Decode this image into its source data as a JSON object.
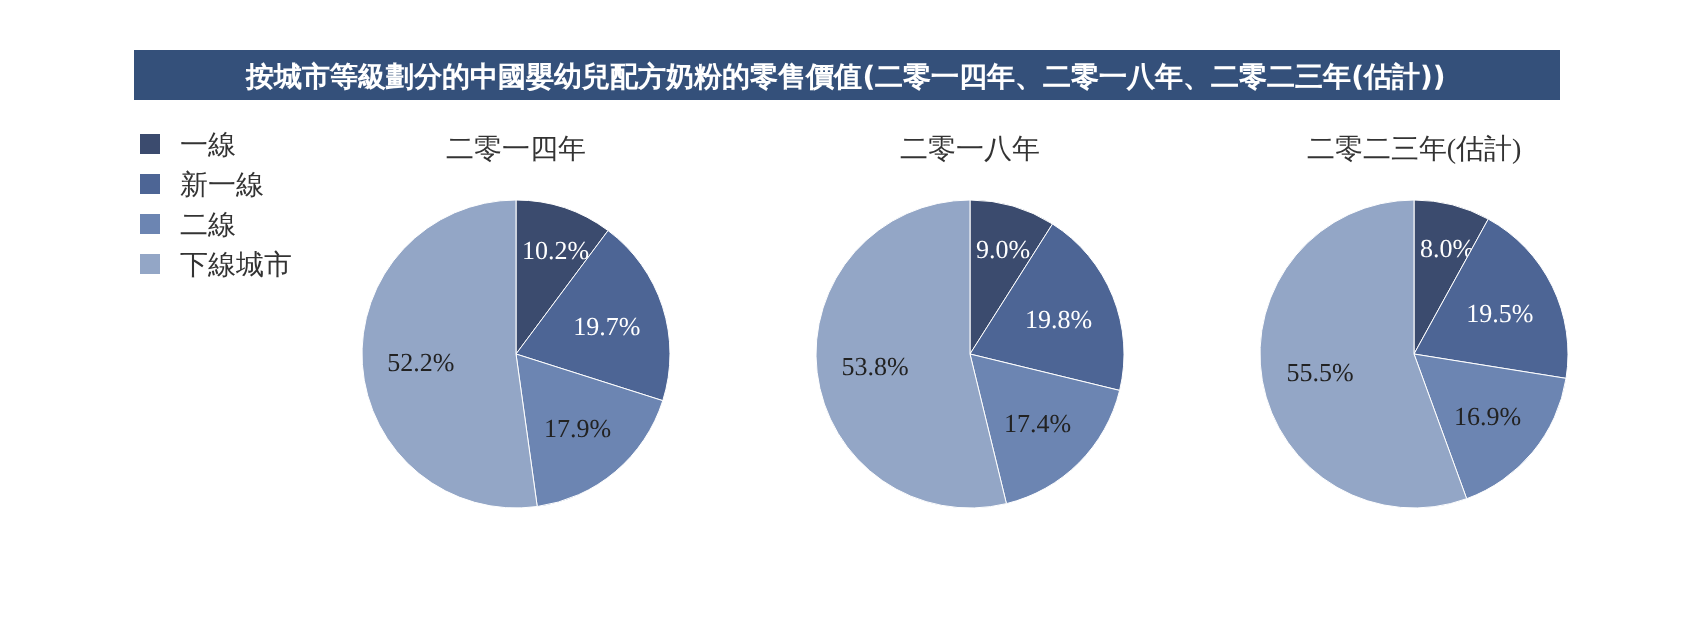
{
  "chart_data": [
    {
      "type": "other",
      "title": "按城市等級劃分的中國嬰幼兒配方奶粉的零售價值(二零一四年、二零一八年、二零二三年(估計))"
    },
    {
      "type": "pie",
      "title": "二零一四年",
      "categories": [
        "一線",
        "新一線",
        "二線",
        "下線城市"
      ],
      "values": [
        10.2,
        19.7,
        17.9,
        52.2
      ],
      "value_labels": [
        "10.2%",
        "19.7%",
        "17.9%",
        "52.2%"
      ],
      "colors": [
        "#3b4b6e",
        "#4d6595",
        "#6c85b2",
        "#93a6c6"
      ],
      "legend": "left"
    },
    {
      "type": "pie",
      "title": "二零一八年",
      "values": [
        9.0,
        19.8,
        17.4,
        53.8
      ],
      "value_labels": [
        "9.0%",
        "19.8%",
        "17.4%",
        "53.8%"
      ],
      "colors": [
        "#3b4b6e",
        "#4d6595",
        "#6c85b2",
        "#93a6c6"
      ]
    },
    {
      "type": "pie",
      "title": "二零二三年(估計)",
      "values": [
        8.0,
        19.5,
        16.9,
        55.5
      ],
      "value_labels": [
        "8.0%",
        "19.5%",
        "16.9%",
        "55.5%"
      ],
      "colors": [
        "#3b4b6e",
        "#4d6595",
        "#6c85b2",
        "#93a6c6"
      ]
    }
  ]
}
